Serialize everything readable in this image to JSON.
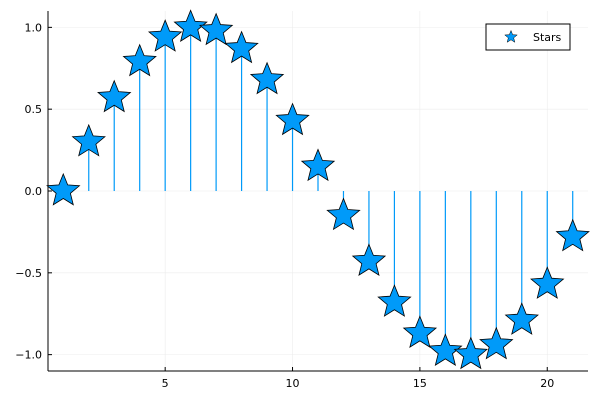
{
  "chart_data": {
    "type": "scatter",
    "series": [
      {
        "name": "Stars",
        "marker": "star",
        "stems": true,
        "x": [
          1,
          2,
          3,
          4,
          5,
          6,
          7,
          8,
          9,
          10,
          11,
          12,
          13,
          14,
          15,
          16,
          17,
          18,
          19,
          20,
          21
        ],
        "values": [
          0.0,
          0.3,
          0.57,
          0.79,
          0.94,
          1.0,
          0.98,
          0.87,
          0.68,
          0.43,
          0.15,
          -0.15,
          -0.43,
          -0.68,
          -0.87,
          -0.98,
          -1.0,
          -0.94,
          -0.79,
          -0.57,
          -0.28
        ]
      }
    ],
    "xlim": [
      0.4,
      21.6
    ],
    "ylim": [
      -1.1,
      1.1
    ],
    "x_ticks": [
      5,
      10,
      15,
      20
    ],
    "x_tick_labels": [
      "5",
      "10",
      "15",
      "20"
    ],
    "y_ticks": [
      -1.0,
      -0.5,
      0.0,
      0.5,
      1.0
    ],
    "y_tick_labels": [
      "−1.0",
      "−0.5",
      "0.0",
      "0.5",
      "1.0"
    ],
    "grid": true,
    "legend_position": "top-right",
    "colors": {
      "series": "#009af9",
      "marker_edge": "#000000",
      "grid": "#ececec",
      "axis": "#000000"
    }
  }
}
